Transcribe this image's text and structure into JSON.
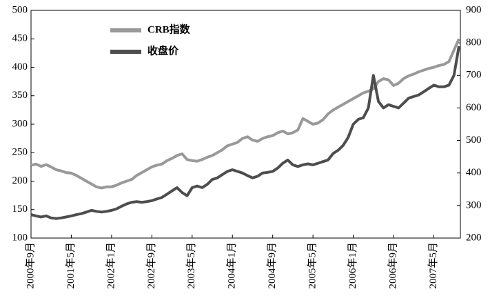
{
  "chart_data": {
    "type": "line",
    "categories": [
      "2000年9月",
      null,
      null,
      null,
      null,
      null,
      null,
      null,
      "2001年5月",
      null,
      null,
      null,
      null,
      null,
      null,
      null,
      "2002年1月",
      null,
      null,
      null,
      null,
      null,
      null,
      null,
      "2002年9月",
      null,
      null,
      null,
      null,
      null,
      null,
      null,
      "2003年5月",
      null,
      null,
      null,
      null,
      null,
      null,
      null,
      "2004年1月",
      null,
      null,
      null,
      null,
      null,
      null,
      null,
      "2004年9月",
      null,
      null,
      null,
      null,
      null,
      null,
      null,
      "2005年5月",
      null,
      null,
      null,
      null,
      null,
      null,
      null,
      "2006年1月",
      null,
      null,
      null,
      null,
      null,
      null,
      null,
      "2006年9月",
      null,
      null,
      null,
      null,
      null,
      null,
      null,
      "2007年5月",
      null,
      null,
      null,
      null,
      null
    ],
    "series": [
      {
        "name": "CRB指数",
        "color": "#999999",
        "axis": "y",
        "values": [
          228,
          230,
          226,
          229,
          225,
          220,
          218,
          215,
          214,
          210,
          205,
          200,
          195,
          190,
          188,
          190,
          190,
          193,
          197,
          200,
          203,
          210,
          215,
          220,
          225,
          228,
          230,
          236,
          240,
          245,
          248,
          238,
          236,
          235,
          238,
          242,
          245,
          250,
          255,
          262,
          265,
          268,
          275,
          278,
          272,
          270,
          275,
          278,
          280,
          285,
          288,
          283,
          285,
          290,
          310,
          305,
          300,
          302,
          308,
          318,
          325,
          330,
          335,
          340,
          345,
          350,
          355,
          358,
          362,
          375,
          380,
          378,
          368,
          372,
          380,
          385,
          388,
          392,
          395,
          398,
          400,
          403,
          405,
          410,
          430,
          450
        ]
      },
      {
        "name": "收盘价",
        "color": "#4d4d4d",
        "axis": "y2",
        "values": [
          272,
          268,
          265,
          268,
          262,
          260,
          262,
          265,
          268,
          272,
          275,
          280,
          285,
          282,
          280,
          282,
          285,
          290,
          298,
          305,
          310,
          312,
          310,
          312,
          315,
          320,
          325,
          335,
          345,
          355,
          340,
          330,
          355,
          360,
          355,
          365,
          380,
          385,
          395,
          405,
          410,
          405,
          400,
          392,
          385,
          390,
          400,
          402,
          405,
          415,
          430,
          440,
          425,
          420,
          425,
          428,
          425,
          430,
          435,
          440,
          460,
          470,
          485,
          510,
          550,
          565,
          570,
          600,
          700,
          620,
          600,
          610,
          605,
          600,
          615,
          630,
          635,
          640,
          650,
          660,
          670,
          665,
          665,
          670,
          700,
          790
        ]
      }
    ],
    "ylim": [
      100,
      500
    ],
    "yticks": [
      100,
      150,
      200,
      250,
      300,
      350,
      400,
      450,
      500
    ],
    "y2lim": [
      200,
      900
    ],
    "y2ticks": [
      200,
      300,
      400,
      500,
      600,
      700,
      800,
      900
    ]
  }
}
